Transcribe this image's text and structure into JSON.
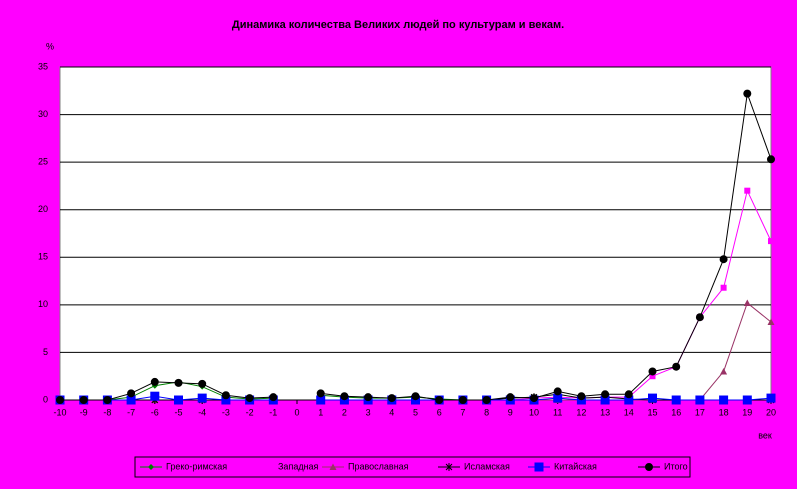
{
  "chart_data": {
    "type": "line",
    "title": "Динамика количества Великих людей по культурам и векам.",
    "y_label": "%",
    "x_label": "век",
    "categories": [
      "-10",
      "-9",
      "-8",
      "-7",
      "-6",
      "-5",
      "-4",
      "-3",
      "-2",
      "-1",
      "0",
      "1",
      "2",
      "3",
      "4",
      "5",
      "6",
      "7",
      "8",
      "9",
      "10",
      "11",
      "12",
      "13",
      "14",
      "15",
      "16",
      "17",
      "18",
      "19",
      "20"
    ],
    "ylim": [
      0,
      35
    ],
    "yticks": [
      0,
      5,
      10,
      15,
      20,
      25,
      30,
      35
    ],
    "grid": true,
    "series": [
      {
        "name": "Греко-римская",
        "color": "#008000",
        "marker": "diamond",
        "values": [
          0,
          0,
          0,
          0.3,
          1.5,
          1.9,
          1.4,
          0.3,
          0.1,
          0.2,
          null,
          0.5,
          0.3,
          0.2,
          0.2,
          0.3,
          0.1,
          0,
          0,
          0,
          0,
          0,
          0,
          0,
          0,
          0,
          0,
          0,
          0,
          0,
          0
        ]
      },
      {
        "name": "Западная",
        "color": "#ff00ff",
        "marker": "square",
        "values": [
          0,
          0,
          0,
          0,
          0,
          0,
          0,
          0,
          0,
          0,
          null,
          0,
          0,
          0,
          0,
          0,
          0,
          0,
          0,
          0,
          0.2,
          0.3,
          0.2,
          0.3,
          0.3,
          2.5,
          3.5,
          8.7,
          11.8,
          22,
          16.7
        ]
      },
      {
        "name": "Православная",
        "color": "#993366",
        "marker": "triangle",
        "values": [
          0,
          0,
          0,
          0,
          0,
          0,
          0,
          0,
          0,
          0,
          null,
          0,
          0,
          0,
          0,
          0,
          0,
          0,
          0,
          0,
          0,
          0,
          0,
          0,
          0,
          0,
          0,
          0,
          3,
          10.2,
          8.2
        ]
      },
      {
        "name": "Исламская",
        "color": "#000000",
        "marker": "star",
        "values": [
          0,
          0,
          0,
          0,
          0,
          0,
          0,
          0,
          0,
          0,
          null,
          0,
          0,
          0,
          0,
          0,
          0,
          0,
          0,
          0.2,
          0.3,
          0.6,
          0.2,
          0.3,
          0.1,
          0,
          0,
          0,
          0,
          0,
          0
        ]
      },
      {
        "name": "Китайская",
        "color": "#0000ff",
        "marker": "bigsquare",
        "values": [
          0,
          0,
          0,
          0,
          0.4,
          0,
          0.2,
          0,
          0,
          0,
          null,
          0,
          0,
          0,
          0,
          0,
          0,
          0,
          0,
          0,
          0,
          0.2,
          0,
          0,
          0,
          0.2,
          0,
          0,
          0,
          0,
          0.2
        ]
      },
      {
        "name": "Итого",
        "color": "#000000",
        "marker": "circle",
        "values": [
          0,
          0,
          0,
          0.7,
          1.9,
          1.8,
          1.7,
          0.5,
          0.2,
          0.3,
          null,
          0.7,
          0.4,
          0.3,
          0.2,
          0.4,
          0,
          0,
          0,
          0.3,
          0.2,
          0.9,
          0.4,
          0.6,
          0.6,
          3,
          3.5,
          8.7,
          14.8,
          32.2,
          25.3
        ]
      }
    ]
  }
}
